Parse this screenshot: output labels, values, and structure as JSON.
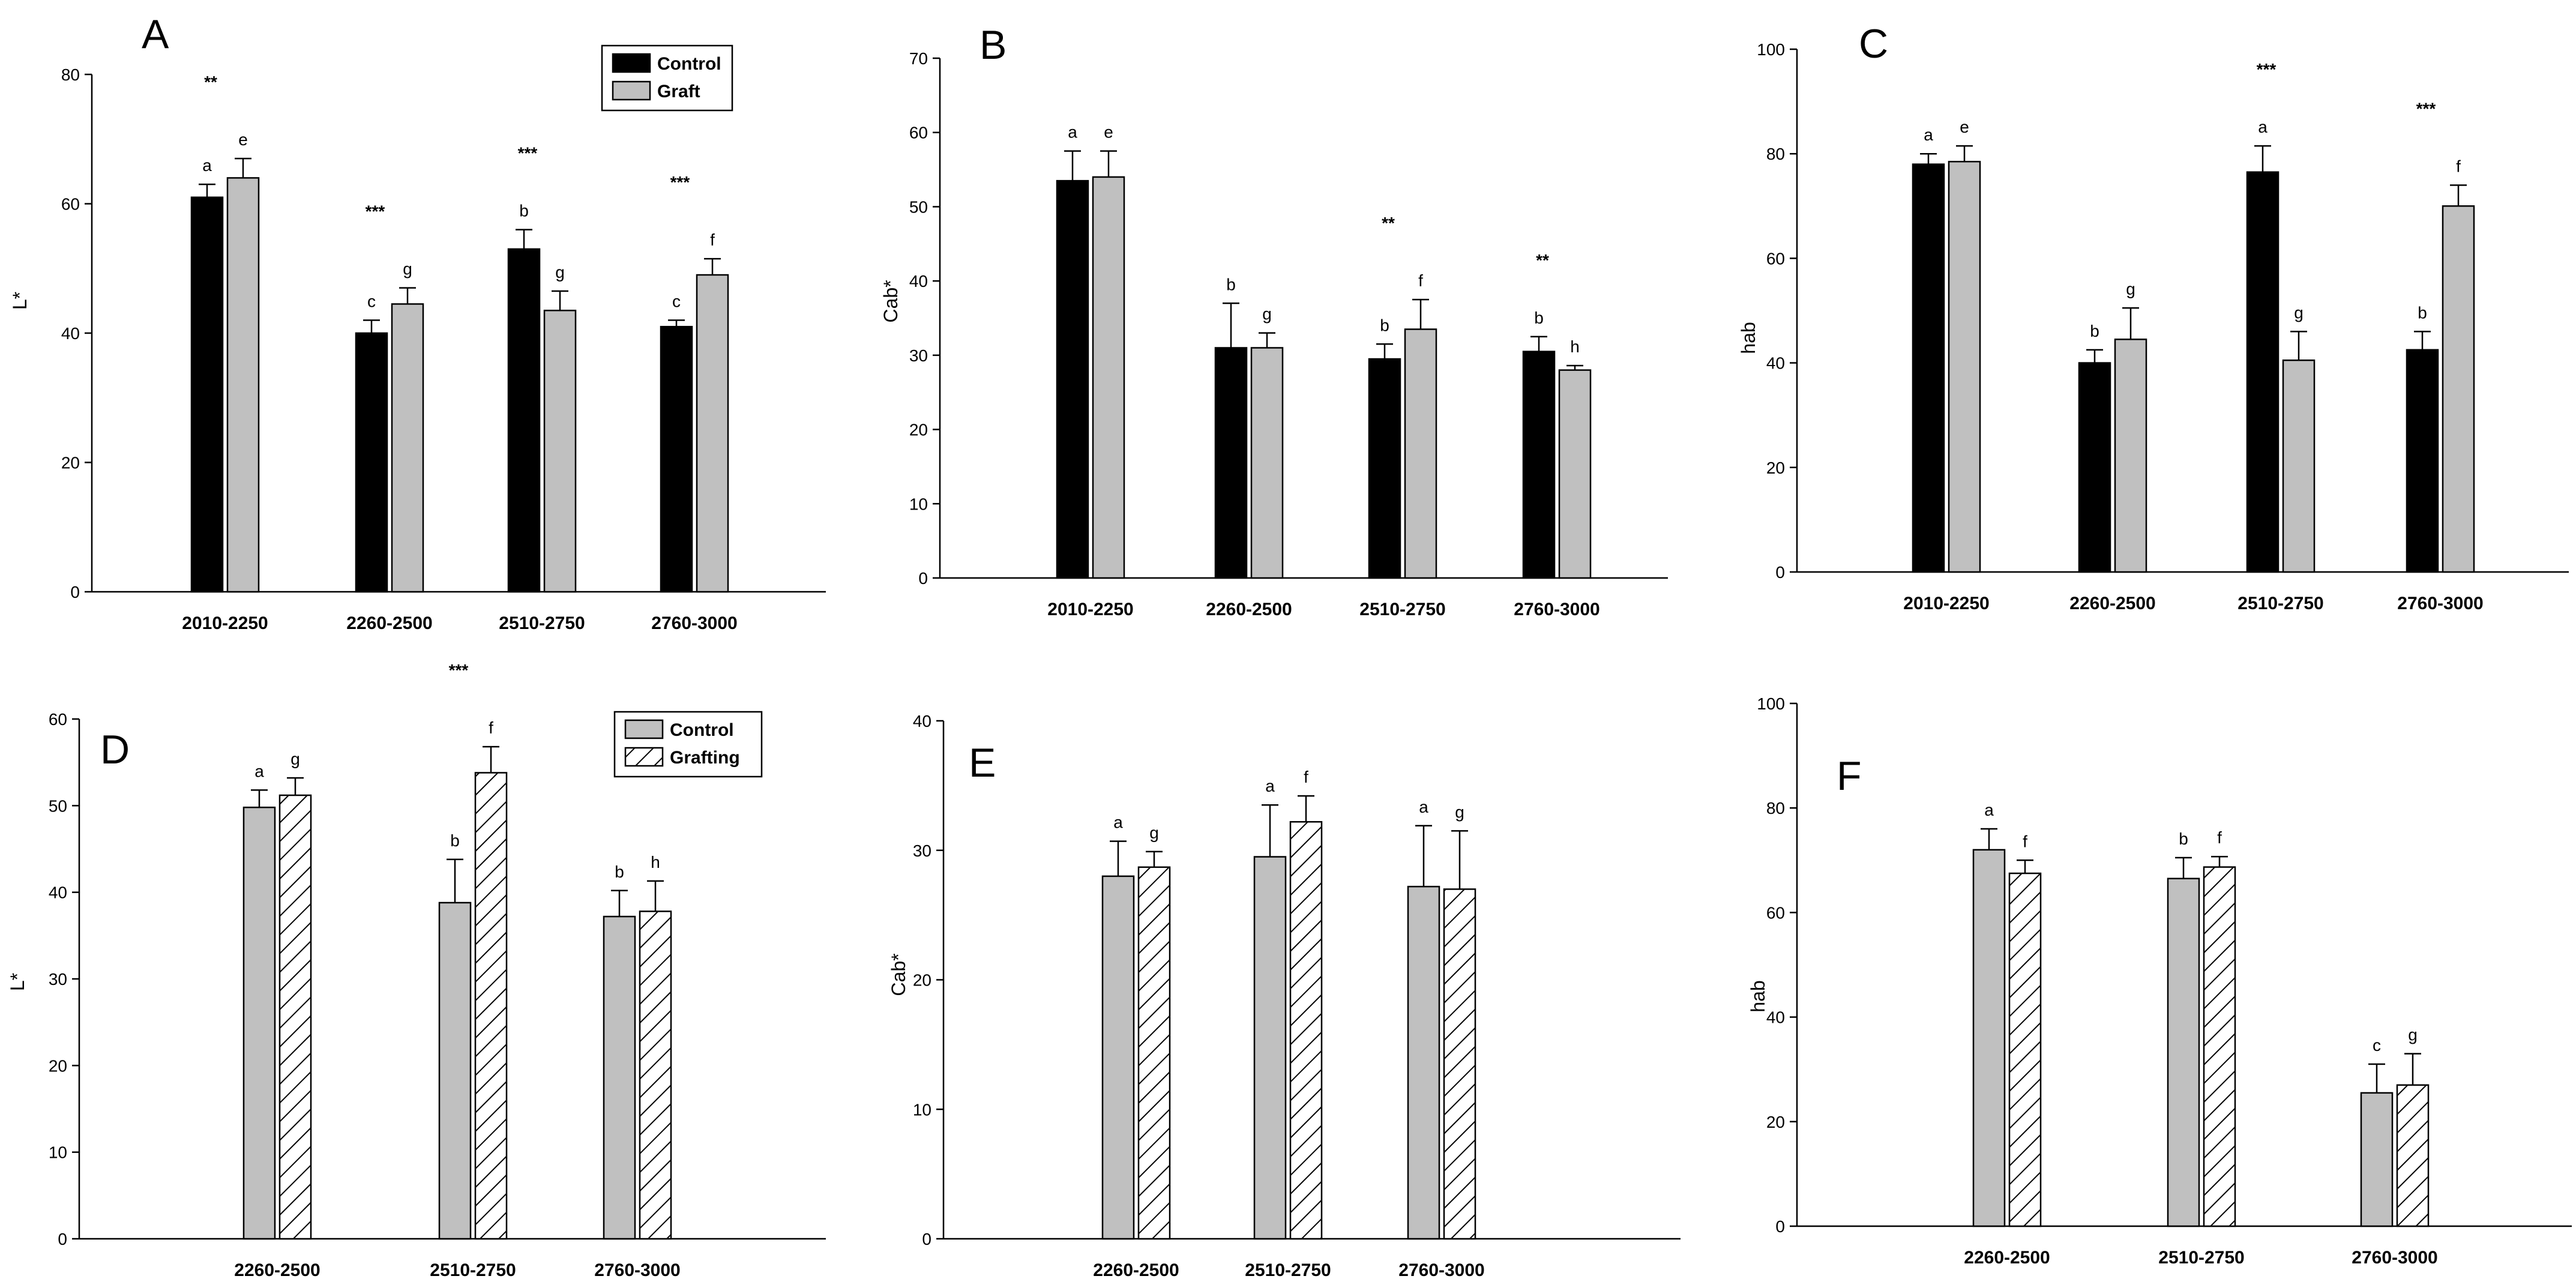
{
  "figure": {
    "panel_labels": [
      "A",
      "B",
      "C",
      "D",
      "E",
      "F"
    ]
  },
  "colors": {
    "control_black": "#000000",
    "graft_gray": "#c0c0c0",
    "bar_stroke": "#000000"
  },
  "chart_data": [
    {
      "panel": "A",
      "type": "bar",
      "ylabel": "L*",
      "ylim": [
        0,
        80
      ],
      "yticks": [
        "0",
        "20",
        "40",
        "60",
        "80"
      ],
      "categories": [
        "2010-2250",
        "2260-2500",
        "2510-2750",
        "2760-3000"
      ],
      "legend": [
        "Control",
        "Graft"
      ],
      "legend_position": "top-right",
      "series": [
        {
          "name": "Control",
          "style": "black",
          "values": [
            61,
            40,
            53,
            41
          ],
          "errors": [
            2,
            2,
            3,
            1
          ],
          "letters": [
            "a",
            "c",
            "b",
            "c"
          ]
        },
        {
          "name": "Graft",
          "style": "gray",
          "values": [
            64,
            44.5,
            43.5,
            49
          ],
          "errors": [
            3,
            2.5,
            3,
            2.5
          ],
          "letters": [
            "e",
            "g",
            "g",
            "f"
          ]
        }
      ],
      "significance": [
        "**",
        "***",
        "***",
        "***"
      ]
    },
    {
      "panel": "B",
      "type": "bar",
      "ylabel": "Cab*",
      "ylim": [
        0,
        70
      ],
      "yticks": [
        "0",
        "10",
        "20",
        "30",
        "40",
        "50",
        "60",
        "70"
      ],
      "categories": [
        "2010-2250",
        "2260-2500",
        "2510-2750",
        "2760-3000"
      ],
      "series": [
        {
          "name": "Control",
          "style": "black",
          "values": [
            53.5,
            31,
            29.5,
            30.5
          ],
          "errors": [
            4,
            6,
            2,
            2
          ],
          "letters": [
            "a",
            "b",
            "b",
            "b"
          ]
        },
        {
          "name": "Graft",
          "style": "gray",
          "values": [
            54,
            31,
            33.5,
            28
          ],
          "errors": [
            3.5,
            2,
            4,
            0.6
          ],
          "letters": [
            "e",
            "g",
            "f",
            "h"
          ]
        }
      ],
      "significance": [
        "",
        "",
        "**",
        "**"
      ]
    },
    {
      "panel": "C",
      "type": "bar",
      "ylabel": "hab",
      "ylim": [
        0,
        100
      ],
      "yticks": [
        "0",
        "20",
        "40",
        "60",
        "80",
        "100"
      ],
      "categories": [
        "2010-2250",
        "2260-2500",
        "2510-2750",
        "2760-3000"
      ],
      "series": [
        {
          "name": "Control",
          "style": "black",
          "values": [
            78,
            40,
            76.5,
            42.5
          ],
          "errors": [
            2,
            2.5,
            5,
            3.5
          ],
          "letters": [
            "a",
            "b",
            "a",
            "b"
          ]
        },
        {
          "name": "Graft",
          "style": "gray",
          "values": [
            78.5,
            44.5,
            40.5,
            70
          ],
          "errors": [
            3,
            6,
            5.5,
            4
          ],
          "letters": [
            "e",
            "g",
            "g",
            "f"
          ]
        }
      ],
      "significance": [
        "",
        "",
        "***",
        "***"
      ]
    },
    {
      "panel": "D",
      "type": "bar",
      "ylabel": "L*",
      "ylim": [
        0,
        60
      ],
      "yticks": [
        "0",
        "10",
        "20",
        "30",
        "40",
        "50",
        "60"
      ],
      "categories": [
        "2260-2500",
        "2510-2750",
        "2760-3000"
      ],
      "legend": [
        "Control",
        "Grafting"
      ],
      "legend_position": "top-right",
      "series": [
        {
          "name": "Control",
          "style": "gray",
          "values": [
            49.8,
            38.8,
            37.2
          ],
          "errors": [
            2,
            5,
            3
          ],
          "letters": [
            "a",
            "b",
            "b"
          ]
        },
        {
          "name": "Grafting",
          "style": "hatch",
          "values": [
            51.2,
            53.8,
            37.8
          ],
          "errors": [
            2,
            3,
            3.5
          ],
          "letters": [
            "g",
            "f",
            "h"
          ]
        }
      ],
      "significance": [
        "",
        "***",
        ""
      ]
    },
    {
      "panel": "E",
      "type": "bar",
      "ylabel": "Cab*",
      "ylim": [
        0,
        40
      ],
      "yticks": [
        "0",
        "10",
        "20",
        "30",
        "40"
      ],
      "categories": [
        "2260-2500",
        "2510-2750",
        "2760-3000"
      ],
      "series": [
        {
          "name": "Control",
          "style": "gray",
          "values": [
            28,
            29.5,
            27.2
          ],
          "errors": [
            2.7,
            4,
            4.7
          ],
          "letters": [
            "a",
            "a",
            "a"
          ]
        },
        {
          "name": "Grafting",
          "style": "hatch",
          "values": [
            28.7,
            32.2,
            27
          ],
          "errors": [
            1.2,
            2,
            4.5
          ],
          "letters": [
            "g",
            "f",
            "g"
          ]
        }
      ],
      "significance": [
        "",
        "",
        ""
      ]
    },
    {
      "panel": "F",
      "type": "bar",
      "ylabel": "hab",
      "ylim": [
        0,
        100
      ],
      "yticks": [
        "0",
        "20",
        "40",
        "60",
        "80",
        "100"
      ],
      "categories": [
        "2260-2500",
        "2510-2750",
        "2760-3000"
      ],
      "series": [
        {
          "name": "Control",
          "style": "gray",
          "values": [
            72,
            66.5,
            25.5
          ],
          "errors": [
            4,
            4,
            5.5
          ],
          "letters": [
            "a",
            "b",
            "c"
          ]
        },
        {
          "name": "Grafting",
          "style": "hatch",
          "values": [
            67.5,
            68.7,
            27
          ],
          "errors": [
            2.5,
            2,
            6
          ],
          "letters": [
            "f",
            "f",
            "g"
          ]
        }
      ],
      "significance": [
        "",
        "",
        ""
      ]
    }
  ]
}
